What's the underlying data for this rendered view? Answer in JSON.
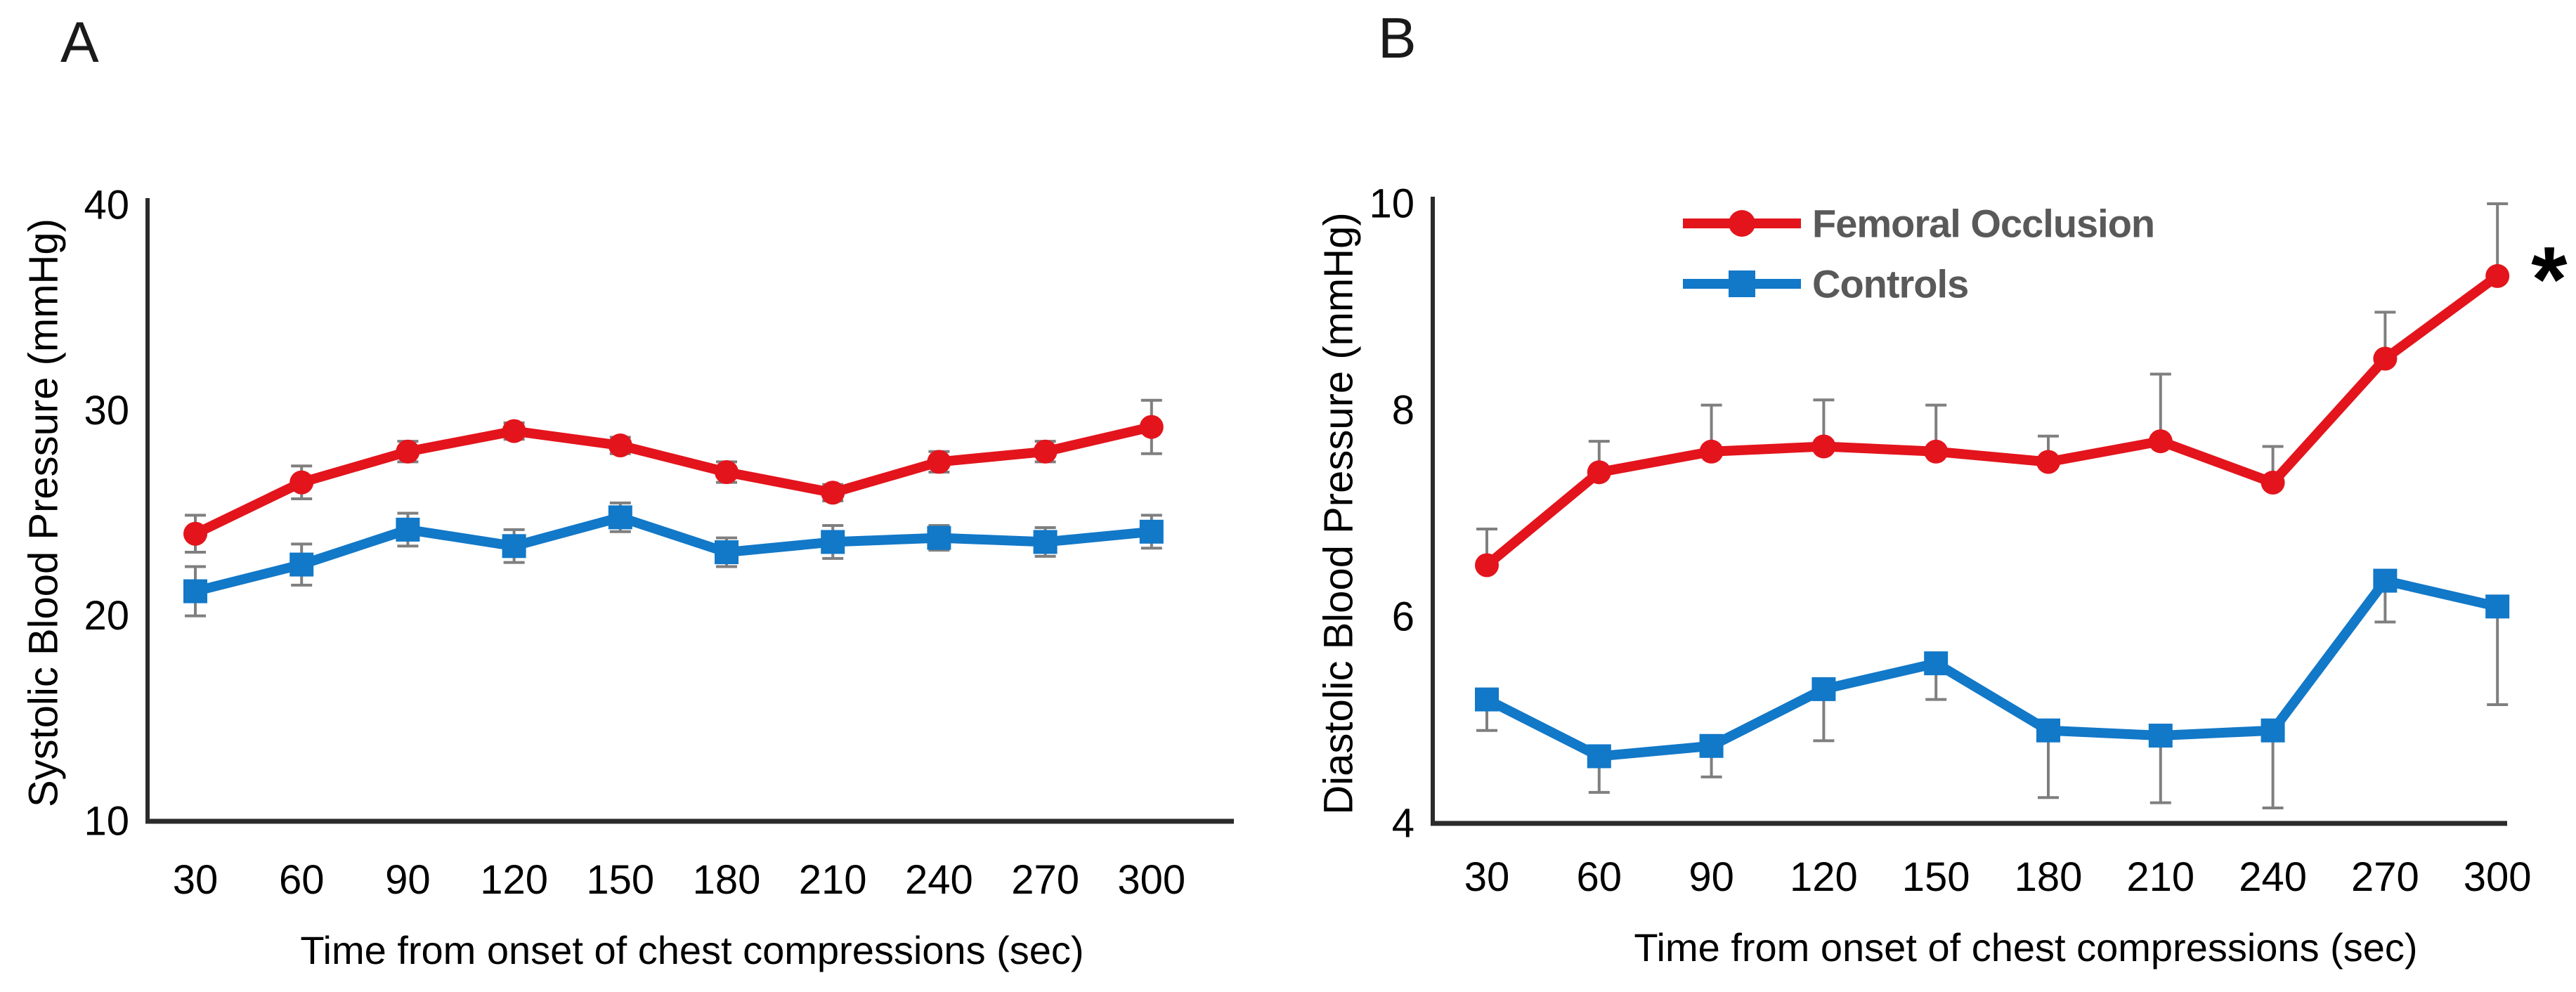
{
  "figure": {
    "background": "#ffffff",
    "colors": {
      "red_series": "#e3141c",
      "blue_series": "#1278c8",
      "error_bar": "#7f7f7f",
      "legend_text": "#595959",
      "axis": "#2b2b2b",
      "text": "#000000"
    }
  },
  "chart_data": [
    {
      "type": "line",
      "panel_label": "A",
      "title": "",
      "xlabel": "Time from onset of chest compressions (sec)",
      "ylabel": "Systolic Blood Pressure (mmHg)",
      "ylim": [
        10,
        40
      ],
      "yticks": [
        10,
        20,
        30,
        40
      ],
      "categories": [
        30,
        60,
        90,
        120,
        150,
        180,
        210,
        240,
        270,
        300
      ],
      "grid": false,
      "legend_visible": false,
      "series": [
        {
          "name": "Femoral Occlusion",
          "color": "#e3141c",
          "marker": "circle",
          "values": [
            24,
            26.5,
            28,
            29,
            28.3,
            27,
            26,
            27.5,
            28,
            29.2
          ],
          "err_up": [
            0.9,
            0.8,
            0.5,
            0.4,
            0.4,
            0.5,
            0.4,
            0.5,
            0.5,
            1.3
          ],
          "err_down": [
            0.9,
            0.8,
            0.5,
            0.4,
            0.4,
            0.5,
            0.4,
            0.5,
            0.5,
            1.3
          ]
        },
        {
          "name": "Controls",
          "color": "#1278c8",
          "marker": "square",
          "values": [
            21.2,
            22.5,
            24.2,
            23.4,
            24.8,
            23.1,
            23.6,
            23.8,
            23.6,
            24.1
          ],
          "err_up": [
            1.2,
            1.0,
            0.8,
            0.8,
            0.7,
            0.7,
            0.8,
            0.6,
            0.7,
            0.8
          ],
          "err_down": [
            1.2,
            1.0,
            0.8,
            0.8,
            0.7,
            0.7,
            0.8,
            0.6,
            0.7,
            0.8
          ]
        }
      ],
      "annotation": null
    },
    {
      "type": "line",
      "panel_label": "B",
      "title": "",
      "xlabel": "Time from onset of chest compressions (sec)",
      "ylabel": "Diastolic Blood Pressure (mmHg)",
      "ylim": [
        4,
        10
      ],
      "yticks": [
        4,
        6,
        8,
        10
      ],
      "categories": [
        30,
        60,
        90,
        120,
        150,
        180,
        210,
        240,
        270,
        300
      ],
      "grid": false,
      "legend_visible": true,
      "series": [
        {
          "name": "Femoral Occlusion",
          "color": "#e3141c",
          "marker": "circle",
          "values": [
            6.5,
            7.4,
            7.6,
            7.65,
            7.6,
            7.5,
            7.7,
            7.3,
            8.5,
            9.3
          ],
          "err_up": [
            0.35,
            0.3,
            0.45,
            0.45,
            0.45,
            0.25,
            0.65,
            0.35,
            0.45,
            0.7
          ],
          "err_down": [
            0,
            0,
            0,
            0,
            0,
            0,
            0,
            0,
            0,
            0
          ]
        },
        {
          "name": "Controls",
          "color": "#1278c8",
          "marker": "square",
          "values": [
            5.2,
            4.65,
            4.75,
            5.3,
            5.55,
            4.9,
            4.85,
            4.9,
            6.35,
            6.1
          ],
          "err_up": [
            0,
            0,
            0,
            0,
            0,
            0,
            0,
            0,
            0,
            0
          ],
          "err_down": [
            0.3,
            0.35,
            0.3,
            0.5,
            0.35,
            0.65,
            0.65,
            0.75,
            0.4,
            0.95
          ]
        }
      ],
      "annotation": {
        "text": "*",
        "series": "Femoral Occlusion",
        "x_category": 300
      }
    }
  ]
}
